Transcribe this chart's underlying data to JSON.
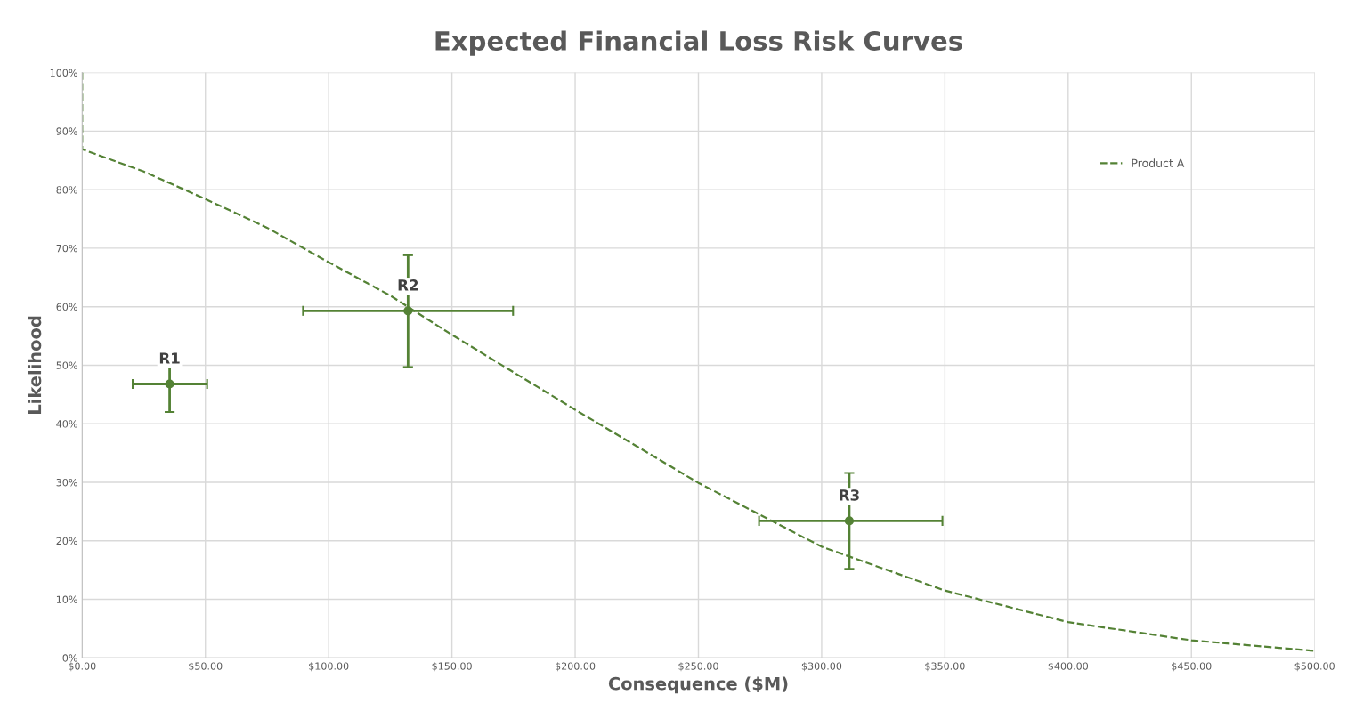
{
  "chart_data": {
    "type": "line",
    "title": "Expected Financial Loss Risk Curves",
    "xlabel": "Consequence ($M)",
    "ylabel": "Likelihood",
    "xlim": [
      0,
      500
    ],
    "ylim": [
      0,
      100
    ],
    "xticks": [
      {
        "value": 0,
        "label": "$0.00"
      },
      {
        "value": 50,
        "label": "$50.00"
      },
      {
        "value": 100,
        "label": "$100.00"
      },
      {
        "value": 150,
        "label": "$150.00"
      },
      {
        "value": 200,
        "label": "$200.00"
      },
      {
        "value": 250,
        "label": "$250.00"
      },
      {
        "value": 300,
        "label": "$300.00"
      },
      {
        "value": 350,
        "label": "$350.00"
      },
      {
        "value": 400,
        "label": "$400.00"
      },
      {
        "value": 450,
        "label": "$450.00"
      },
      {
        "value": 500,
        "label": "$500.00"
      }
    ],
    "yticks": [
      {
        "value": 0,
        "label": "0%"
      },
      {
        "value": 10,
        "label": "10%"
      },
      {
        "value": 20,
        "label": "20%"
      },
      {
        "value": 30,
        "label": "30%"
      },
      {
        "value": 40,
        "label": "40%"
      },
      {
        "value": 50,
        "label": "50%"
      },
      {
        "value": 60,
        "label": "60%"
      },
      {
        "value": 70,
        "label": "70%"
      },
      {
        "value": 80,
        "label": "80%"
      },
      {
        "value": 90,
        "label": "90%"
      },
      {
        "value": 100,
        "label": "100%"
      }
    ],
    "grid": true,
    "legend": "top right",
    "series": [
      {
        "name": "Product A",
        "color": "#548235",
        "line_style": "dashed",
        "marker": "none",
        "x": [
          0,
          0,
          25,
          50,
          75,
          100,
          125,
          150,
          200,
          250,
          300,
          350,
          400,
          450,
          500
        ],
        "values": [
          100,
          86.9,
          83.1,
          78.4,
          73.5,
          67.6,
          61.9,
          55.2,
          42.4,
          29.9,
          19.0,
          11.5,
          6.1,
          3.0,
          1.2
        ]
      },
      {
        "type": "scatter",
        "color": "#548235",
        "marker": "circle",
        "x": [
          35.5,
          132.2,
          311.2
        ],
        "values": [
          46.8,
          59.3,
          23.4
        ],
        "errors": [
          [
            42.0,
            51.5
          ],
          [
            49.7,
            68.8
          ],
          [
            15.2,
            31.6
          ]
        ],
        "xerrors": [
          [
            20.5,
            50.7
          ],
          [
            89.6,
            174.8
          ],
          [
            274.6,
            349.0
          ]
        ]
      }
    ],
    "annotations": [
      {
        "text": "R1",
        "x": 35.5,
        "y": 46.8
      },
      {
        "text": "R2",
        "x": 132.2,
        "y": 59.3
      },
      {
        "text": "R3",
        "x": 311.2,
        "y": 23.4
      }
    ]
  }
}
